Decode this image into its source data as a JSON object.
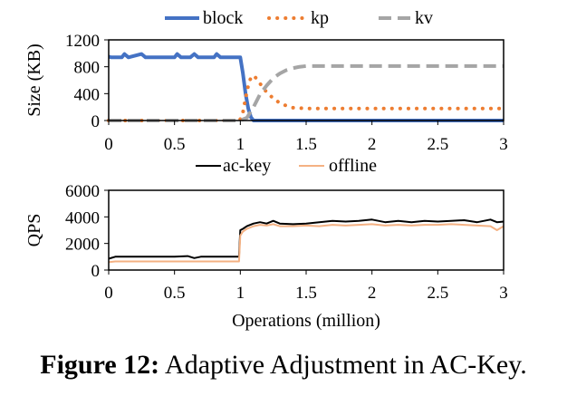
{
  "caption": {
    "label": "Figure 12:",
    "text": "Adaptive Adjustment in AC-Key."
  },
  "chart_data": [
    {
      "type": "line",
      "ylabel": "Size (KB)",
      "xlabel": "",
      "xlim": [
        0,
        3
      ],
      "ylim": [
        0,
        1200
      ],
      "xticks": [
        "0",
        "0.5",
        "1",
        "1.5",
        "2",
        "2.5",
        "3"
      ],
      "yticks": [
        "0",
        "400",
        "800",
        "1200"
      ],
      "legend_position": "top",
      "series": [
        {
          "name": "block",
          "style": "solid",
          "color": "#4472C4",
          "x": [
            0,
            0.02,
            0.05,
            0.1,
            0.12,
            0.15,
            0.25,
            0.28,
            0.3,
            0.4,
            0.5,
            0.52,
            0.55,
            0.62,
            0.65,
            0.68,
            0.75,
            0.8,
            0.82,
            0.85,
            0.95,
            1.0,
            1.02,
            1.04,
            1.06,
            1.08,
            1.1,
            1.12,
            1.5,
            2.0,
            2.5,
            3.0
          ],
          "y": [
            950,
            940,
            940,
            940,
            990,
            940,
            990,
            940,
            940,
            940,
            940,
            990,
            940,
            940,
            990,
            940,
            940,
            940,
            990,
            940,
            940,
            940,
            700,
            400,
            180,
            50,
            0,
            0,
            0,
            0,
            0,
            0
          ]
        },
        {
          "name": "kp",
          "style": "dotted",
          "color": "#ED7D31",
          "x": [
            0,
            0.5,
            0.98,
            1.0,
            1.02,
            1.04,
            1.06,
            1.08,
            1.1,
            1.13,
            1.16,
            1.2,
            1.25,
            1.3,
            1.35,
            1.4,
            1.5,
            1.75,
            2.0,
            2.25,
            2.5,
            2.75,
            3.0
          ],
          "y": [
            0,
            0,
            0,
            20,
            120,
            330,
            520,
            640,
            670,
            610,
            520,
            420,
            330,
            260,
            220,
            190,
            180,
            180,
            180,
            180,
            180,
            180,
            180
          ]
        },
        {
          "name": "kv",
          "style": "dashed",
          "color": "#A5A5A5",
          "x": [
            0,
            0.5,
            1.0,
            1.05,
            1.1,
            1.15,
            1.2,
            1.25,
            1.3,
            1.35,
            1.4,
            1.45,
            1.5,
            2.0,
            2.5,
            3.0
          ],
          "y": [
            0,
            0,
            0,
            40,
            200,
            390,
            520,
            630,
            700,
            750,
            780,
            800,
            810,
            810,
            810,
            810
          ]
        }
      ]
    },
    {
      "type": "line",
      "ylabel": "QPS",
      "xlabel": "Operations (million)",
      "xlim": [
        0,
        3
      ],
      "ylim": [
        0,
        6000
      ],
      "xticks": [
        "0",
        "0.5",
        "1",
        "1.5",
        "2",
        "2.5",
        "3"
      ],
      "yticks": [
        "0",
        "2000",
        "4000",
        "6000"
      ],
      "legend_position": "top",
      "series": [
        {
          "name": "ac-key",
          "style": "solid",
          "color": "#000000",
          "x": [
            0,
            0.05,
            0.1,
            0.2,
            0.3,
            0.4,
            0.5,
            0.6,
            0.65,
            0.7,
            0.8,
            0.9,
            0.99,
            1.0,
            1.02,
            1.05,
            1.1,
            1.15,
            1.2,
            1.25,
            1.3,
            1.4,
            1.5,
            1.6,
            1.7,
            1.8,
            1.9,
            2.0,
            2.1,
            2.2,
            2.3,
            2.4,
            2.5,
            2.6,
            2.7,
            2.8,
            2.9,
            2.95,
            3.0
          ],
          "y": [
            850,
            1000,
            1000,
            1000,
            1000,
            1000,
            1000,
            1050,
            900,
            1000,
            1000,
            1000,
            1000,
            3000,
            3100,
            3300,
            3500,
            3600,
            3500,
            3700,
            3500,
            3450,
            3500,
            3600,
            3700,
            3650,
            3700,
            3800,
            3600,
            3700,
            3600,
            3700,
            3650,
            3700,
            3750,
            3600,
            3800,
            3600,
            3650
          ]
        },
        {
          "name": "offline",
          "style": "solid",
          "color": "#F4B183",
          "x": [
            0,
            0.05,
            0.1,
            0.2,
            0.3,
            0.4,
            0.5,
            0.6,
            0.7,
            0.8,
            0.9,
            0.99,
            1.0,
            1.02,
            1.05,
            1.1,
            1.15,
            1.2,
            1.25,
            1.3,
            1.4,
            1.5,
            1.6,
            1.7,
            1.8,
            1.9,
            2.0,
            2.1,
            2.2,
            2.3,
            2.4,
            2.5,
            2.6,
            2.7,
            2.8,
            2.9,
            2.95,
            3.0
          ],
          "y": [
            600,
            650,
            650,
            650,
            650,
            650,
            650,
            650,
            650,
            650,
            650,
            650,
            2600,
            2900,
            3100,
            3300,
            3400,
            3350,
            3450,
            3300,
            3300,
            3350,
            3300,
            3400,
            3350,
            3400,
            3450,
            3350,
            3400,
            3350,
            3400,
            3400,
            3450,
            3400,
            3350,
            3300,
            3000,
            3300
          ]
        }
      ]
    }
  ]
}
